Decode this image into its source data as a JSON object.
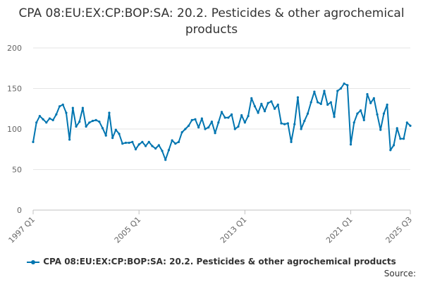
{
  "chart_data": {
    "type": "line",
    "title": "CPA 08:EU:EX:CP:BOP:SA: 20.2. Pesticides & other agrochemical products",
    "xlabel": "",
    "ylabel": "",
    "ylim": [
      0,
      200
    ],
    "y_ticks": [
      0,
      50,
      100,
      150,
      200
    ],
    "x_tick_labels": [
      "1997 Q1",
      "2005 Q1",
      "2013 Q1",
      "2021 Q1",
      "2025 Q3"
    ],
    "grid": "horizontal",
    "legend_position": "bottom",
    "series": [
      {
        "name": "CPA 08:EU:EX:CP:BOP:SA: 20.2. Pesticides & other agrochemical products",
        "color": "#0075b0",
        "x": [
          "1997 Q1",
          "1997 Q2",
          "1997 Q3",
          "1997 Q4",
          "1998 Q1",
          "1998 Q2",
          "1998 Q3",
          "1998 Q4",
          "1999 Q1",
          "1999 Q2",
          "1999 Q3",
          "1999 Q4",
          "2000 Q1",
          "2000 Q2",
          "2000 Q3",
          "2000 Q4",
          "2001 Q1",
          "2001 Q2",
          "2001 Q3",
          "2001 Q4",
          "2002 Q1",
          "2002 Q2",
          "2002 Q3",
          "2002 Q4",
          "2003 Q1",
          "2003 Q2",
          "2003 Q3",
          "2003 Q4",
          "2004 Q1",
          "2004 Q2",
          "2004 Q3",
          "2004 Q4",
          "2005 Q1",
          "2005 Q2",
          "2005 Q3",
          "2005 Q4",
          "2006 Q1",
          "2006 Q2",
          "2006 Q3",
          "2006 Q4",
          "2007 Q1",
          "2007 Q2",
          "2007 Q3",
          "2007 Q4",
          "2008 Q1",
          "2008 Q2",
          "2008 Q3",
          "2008 Q4",
          "2009 Q1",
          "2009 Q2",
          "2009 Q3",
          "2009 Q4",
          "2010 Q1",
          "2010 Q2",
          "2010 Q3",
          "2010 Q4",
          "2011 Q1",
          "2011 Q2",
          "2011 Q3",
          "2011 Q4",
          "2012 Q1",
          "2012 Q2",
          "2012 Q3",
          "2012 Q4",
          "2013 Q1",
          "2013 Q2",
          "2013 Q3",
          "2013 Q4",
          "2014 Q1",
          "2014 Q2",
          "2014 Q3",
          "2014 Q4",
          "2015 Q1",
          "2015 Q2",
          "2015 Q3",
          "2015 Q4",
          "2016 Q1",
          "2016 Q2",
          "2016 Q3",
          "2016 Q4",
          "2017 Q1",
          "2017 Q2",
          "2017 Q3",
          "2017 Q4",
          "2018 Q1",
          "2018 Q2",
          "2018 Q3",
          "2018 Q4",
          "2019 Q1",
          "2019 Q2",
          "2019 Q3",
          "2019 Q4",
          "2020 Q1",
          "2020 Q2",
          "2020 Q3",
          "2020 Q4",
          "2021 Q1",
          "2021 Q2",
          "2021 Q3",
          "2021 Q4",
          "2022 Q1",
          "2022 Q2",
          "2022 Q3",
          "2022 Q4",
          "2023 Q1",
          "2023 Q2",
          "2023 Q3",
          "2023 Q4",
          "2024 Q1",
          "2024 Q2",
          "2024 Q3",
          "2024 Q4",
          "2025 Q1",
          "2025 Q2",
          "2025 Q3"
        ],
        "values": [
          84,
          108,
          116,
          112,
          108,
          113,
          111,
          118,
          128,
          130,
          120,
          87,
          126,
          103,
          109,
          126,
          103,
          108,
          110,
          111,
          109,
          101,
          92,
          120,
          89,
          99,
          94,
          82,
          83,
          83,
          84,
          75,
          81,
          84,
          79,
          84,
          79,
          76,
          80,
          73,
          62,
          74,
          86,
          82,
          84,
          96,
          100,
          104,
          111,
          112,
          102,
          113,
          100,
          102,
          109,
          95,
          108,
          121,
          114,
          114,
          118,
          100,
          103,
          117,
          108,
          116,
          138,
          128,
          120,
          131,
          122,
          132,
          134,
          125,
          130,
          107,
          106,
          107,
          84,
          106,
          139,
          100,
          110,
          119,
          133,
          146,
          133,
          131,
          147,
          130,
          133,
          115,
          147,
          150,
          156,
          154,
          81,
          108,
          119,
          123,
          111,
          143,
          132,
          138,
          118,
          99,
          119,
          130,
          74,
          80,
          101,
          88,
          88,
          108,
          104
        ]
      }
    ]
  },
  "legend": {
    "label": "CPA 08:EU:EX:CP:BOP:SA: 20.2. Pesticides & other agrochemical products"
  },
  "source_label": "Source:"
}
